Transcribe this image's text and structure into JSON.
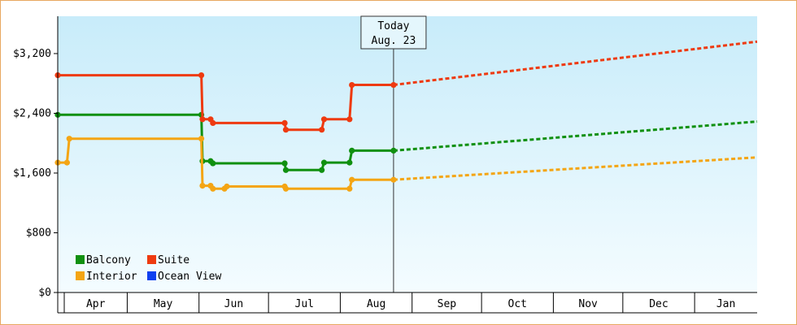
{
  "chart_data": {
    "type": "line",
    "title": "",
    "xlabel": "",
    "ylabel": "",
    "ylim": [
      0,
      3700
    ],
    "y_ticks": [
      {
        "value": 0,
        "label": "$0"
      },
      {
        "value": 800,
        "label": "$800"
      },
      {
        "value": 1600,
        "label": "$1,600"
      },
      {
        "value": 2400,
        "label": "$2,400"
      },
      {
        "value": 3200,
        "label": "$3,200"
      }
    ],
    "months": [
      "Apr",
      "May",
      "Jun",
      "Jul",
      "Aug",
      "Sep",
      "Oct",
      "Nov",
      "Dec",
      "Jan"
    ],
    "x_range_days": [
      0,
      302
    ],
    "today": {
      "label_line1": "Today",
      "label_line2": "Aug. 23",
      "day": 145
    },
    "grid": false,
    "legend_position": "bottom-left",
    "series": [
      {
        "name": "Balcony",
        "color": "#109010",
        "history": [
          [
            0,
            2380
          ],
          [
            62,
            2380
          ],
          [
            62.5,
            1760
          ],
          [
            66,
            1760
          ],
          [
            67,
            1730
          ],
          [
            98,
            1730
          ],
          [
            98.5,
            1640
          ],
          [
            114,
            1640
          ],
          [
            115,
            1740
          ],
          [
            126,
            1740
          ],
          [
            127,
            1900
          ],
          [
            145,
            1900
          ]
        ],
        "forecast": [
          [
            145,
            1900
          ],
          [
            302,
            2290
          ]
        ]
      },
      {
        "name": "Suite",
        "color": "#ee3a10",
        "history": [
          [
            0,
            2910
          ],
          [
            62,
            2910
          ],
          [
            62.5,
            2320
          ],
          [
            66,
            2320
          ],
          [
            67,
            2270
          ],
          [
            98,
            2270
          ],
          [
            98.5,
            2180
          ],
          [
            114,
            2180
          ],
          [
            115,
            2320
          ],
          [
            126,
            2320
          ],
          [
            127,
            2780
          ],
          [
            145,
            2780
          ]
        ],
        "forecast": [
          [
            145,
            2780
          ],
          [
            302,
            3360
          ]
        ]
      },
      {
        "name": "Interior",
        "color": "#f4a514",
        "history": [
          [
            0,
            1740
          ],
          [
            4,
            1740
          ],
          [
            5,
            2060
          ],
          [
            62,
            2060
          ],
          [
            62.5,
            1430
          ],
          [
            66,
            1430
          ],
          [
            67,
            1390
          ],
          [
            72,
            1390
          ],
          [
            73,
            1420
          ],
          [
            98,
            1420
          ],
          [
            98.5,
            1390
          ],
          [
            126,
            1390
          ],
          [
            127,
            1510
          ],
          [
            145,
            1510
          ]
        ],
        "forecast": [
          [
            145,
            1510
          ],
          [
            302,
            1810
          ]
        ]
      },
      {
        "name": "Ocean View",
        "color": "#1040f0",
        "history": [],
        "forecast": []
      }
    ]
  }
}
